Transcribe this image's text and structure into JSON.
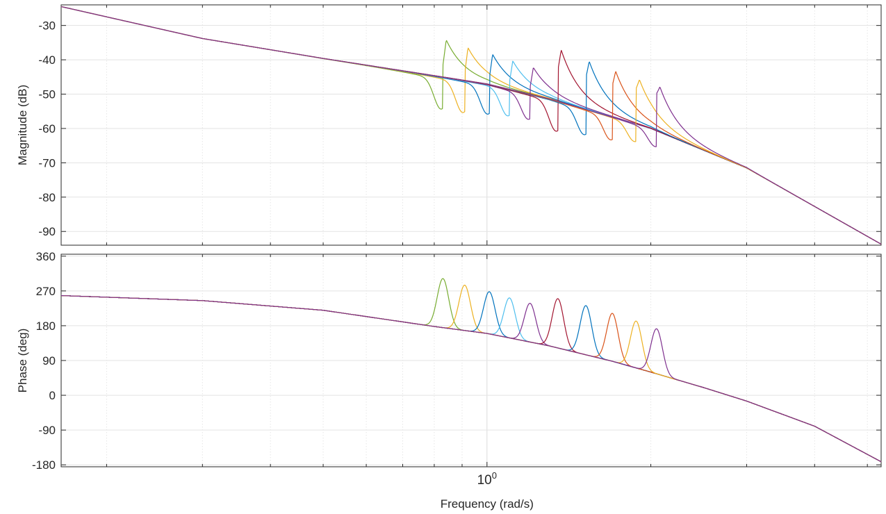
{
  "chart_data": {
    "type": "line",
    "title": "",
    "xlabel": "Frequency  (rad/s)",
    "x_scale": "log",
    "xlim": [
      0.165,
      5.3
    ],
    "x_decade_label": {
      "base": "10",
      "exponent": "0",
      "value": 1
    },
    "grid": true,
    "panels": [
      {
        "name": "magnitude",
        "ylabel": "Magnitude (dB)",
        "ylim": [
          -94,
          -24
        ],
        "yticks": [
          -90,
          -80,
          -70,
          -60,
          -50,
          -40,
          -30
        ],
        "ytick_labels": [
          "-90",
          "-80",
          "-70",
          "-60",
          "-50",
          "-40",
          "-30"
        ],
        "baseline_db": {
          "x": [
            0.165,
            0.3,
            0.5,
            0.8,
            1.0,
            1.3,
            1.7,
            2.0,
            3.0,
            5.3
          ],
          "y": [
            -24.5,
            -33.8,
            -39.6,
            -44.6,
            -47.0,
            -51.3,
            -56.6,
            -60.0,
            -71.5,
            -93.7
          ]
        }
      },
      {
        "name": "phase",
        "ylabel": "Phase (deg)",
        "ylim": [
          -185,
          365
        ],
        "yticks": [
          -180,
          -90,
          0,
          90,
          180,
          270,
          360
        ],
        "ytick_labels": [
          "-180",
          "-90",
          "0",
          "90",
          "180",
          "270",
          "360"
        ],
        "baseline_deg": {
          "x": [
            0.165,
            0.3,
            0.5,
            0.8,
            1.0,
            1.3,
            1.7,
            2.0,
            2.5,
            3.0,
            4.0,
            5.3
          ],
          "y": [
            258,
            245,
            220,
            178,
            160,
            128,
            88,
            60,
            20,
            -15,
            -80,
            -172
          ]
        }
      }
    ],
    "series": [
      {
        "color": "#77AC30",
        "resonance_rad_s": 0.83,
        "mag_peak_db": -32,
        "mag_dip_db": -54.5,
        "phase_peak_deg": 302
      },
      {
        "color": "#EDB120",
        "resonance_rad_s": 0.91,
        "mag_peak_db": -34.5,
        "mag_dip_db": -55.5,
        "phase_peak_deg": 285
      },
      {
        "color": "#0072BD",
        "resonance_rad_s": 1.01,
        "mag_peak_db": -36.5,
        "mag_dip_db": -56,
        "phase_peak_deg": 268
      },
      {
        "color": "#4DBEEE",
        "resonance_rad_s": 1.1,
        "mag_peak_db": -38.5,
        "mag_dip_db": -56.5,
        "phase_peak_deg": 252
      },
      {
        "color": "#7E2F8E",
        "resonance_rad_s": 1.2,
        "mag_peak_db": -40.5,
        "mag_dip_db": -57.5,
        "phase_peak_deg": 238
      },
      {
        "color": "#A2142F",
        "resonance_rad_s": 1.35,
        "mag_peak_db": -34,
        "mag_dip_db": -61,
        "phase_peak_deg": 250
      },
      {
        "color": "#0072BD",
        "resonance_rad_s": 1.52,
        "mag_peak_db": -37.5,
        "mag_dip_db": -62,
        "phase_peak_deg": 232
      },
      {
        "color": "#D95319",
        "resonance_rad_s": 1.7,
        "mag_peak_db": -40.5,
        "mag_dip_db": -63.5,
        "phase_peak_deg": 212
      },
      {
        "color": "#EDB120",
        "resonance_rad_s": 1.88,
        "mag_peak_db": -43,
        "mag_dip_db": -64,
        "phase_peak_deg": 192
      },
      {
        "color": "#7E2F8E",
        "resonance_rad_s": 2.05,
        "mag_peak_db": -45,
        "mag_dip_db": -65.5,
        "phase_peak_deg": 172
      }
    ]
  }
}
